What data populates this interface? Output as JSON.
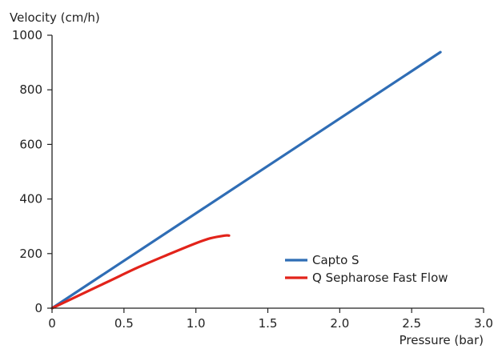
{
  "chart_data": {
    "type": "line",
    "xlabel": "Pressure (bar)",
    "ylabel": "Velocity (cm/h)",
    "xlim": [
      0,
      3.0
    ],
    "ylim": [
      0,
      1000
    ],
    "x_ticks": [
      "0",
      "0.5",
      "1.0",
      "1.5",
      "2.0",
      "2.5",
      "3.0"
    ],
    "y_ticks": [
      "0",
      "200",
      "400",
      "600",
      "800",
      "1000"
    ],
    "grid": false,
    "legend_position": "bottom-right",
    "series": [
      {
        "name": "Capto S",
        "color": "#2f6db5",
        "points": [
          [
            0,
            0
          ],
          [
            2.7,
            938
          ]
        ]
      },
      {
        "name": "Q Sepharose Fast Flow",
        "color": "#e2231a",
        "points": [
          [
            0,
            0
          ],
          [
            0.2,
            50
          ],
          [
            0.4,
            100
          ],
          [
            0.6,
            150
          ],
          [
            0.8,
            195
          ],
          [
            1.0,
            238
          ],
          [
            1.1,
            256
          ],
          [
            1.2,
            266
          ],
          [
            1.23,
            266
          ]
        ]
      }
    ]
  }
}
